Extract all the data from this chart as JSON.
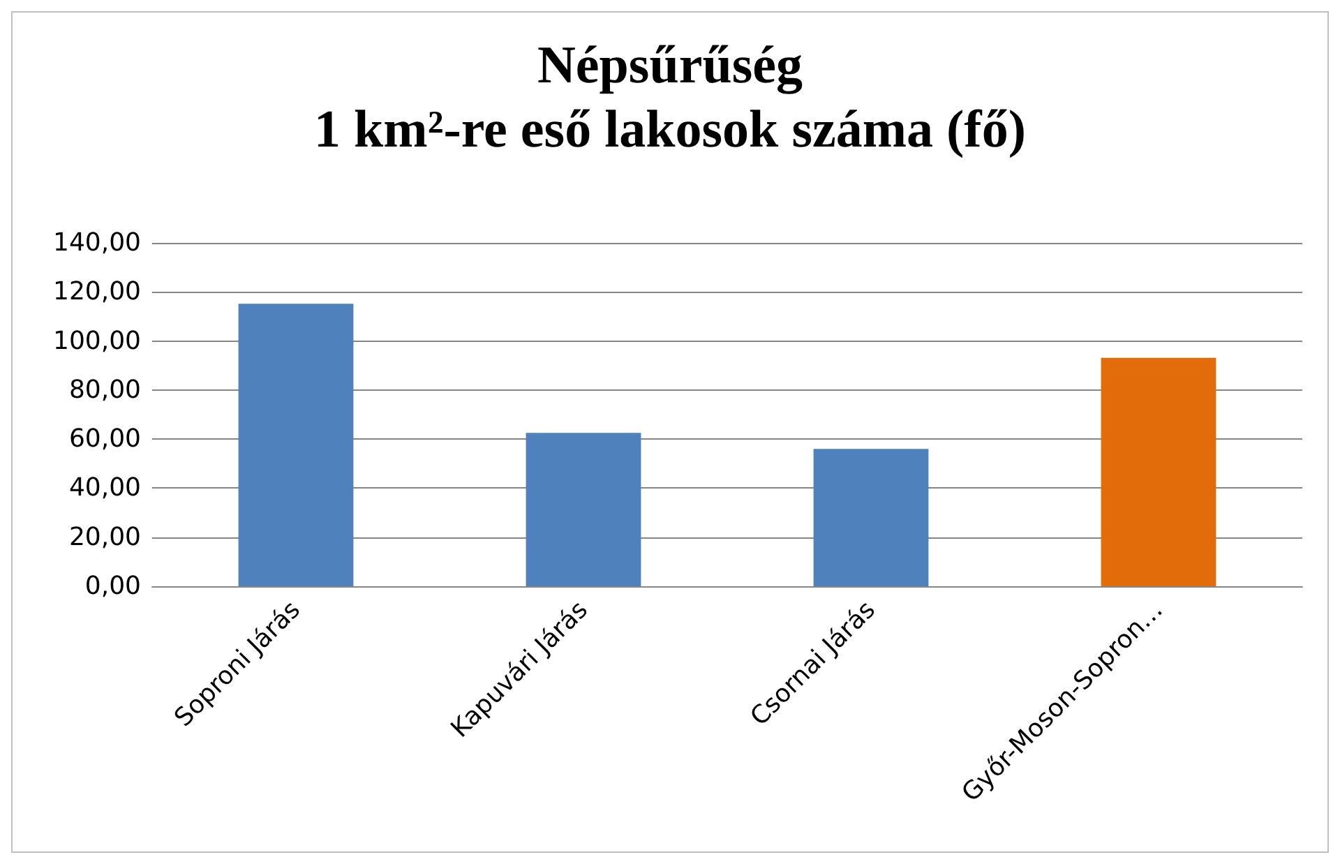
{
  "chart_data": {
    "type": "bar",
    "title": "Népsűrűség\n1 km²-re eső lakosok száma (fő)",
    "categories": [
      "Soproni Járás",
      "Kapuvári Járás",
      "Csornai Járás",
      "Győr-Moson-Sopron…"
    ],
    "values": [
      115.2,
      62.5,
      56,
      93.1
    ],
    "colors": [
      "#4f81bd",
      "#4f81bd",
      "#4f81bd",
      "#e36c0a"
    ],
    "ylim": [
      0,
      140
    ],
    "yticks": [
      {
        "value": 0,
        "label": "0,00"
      },
      {
        "value": 20,
        "label": "20,00"
      },
      {
        "value": 40,
        "label": "40,00"
      },
      {
        "value": 60,
        "label": "60,00"
      },
      {
        "value": 80,
        "label": "80,00"
      },
      {
        "value": 100,
        "label": "100,00"
      },
      {
        "value": 120,
        "label": "120,00"
      },
      {
        "value": 140,
        "label": "140,00"
      }
    ],
    "grid": "y"
  }
}
